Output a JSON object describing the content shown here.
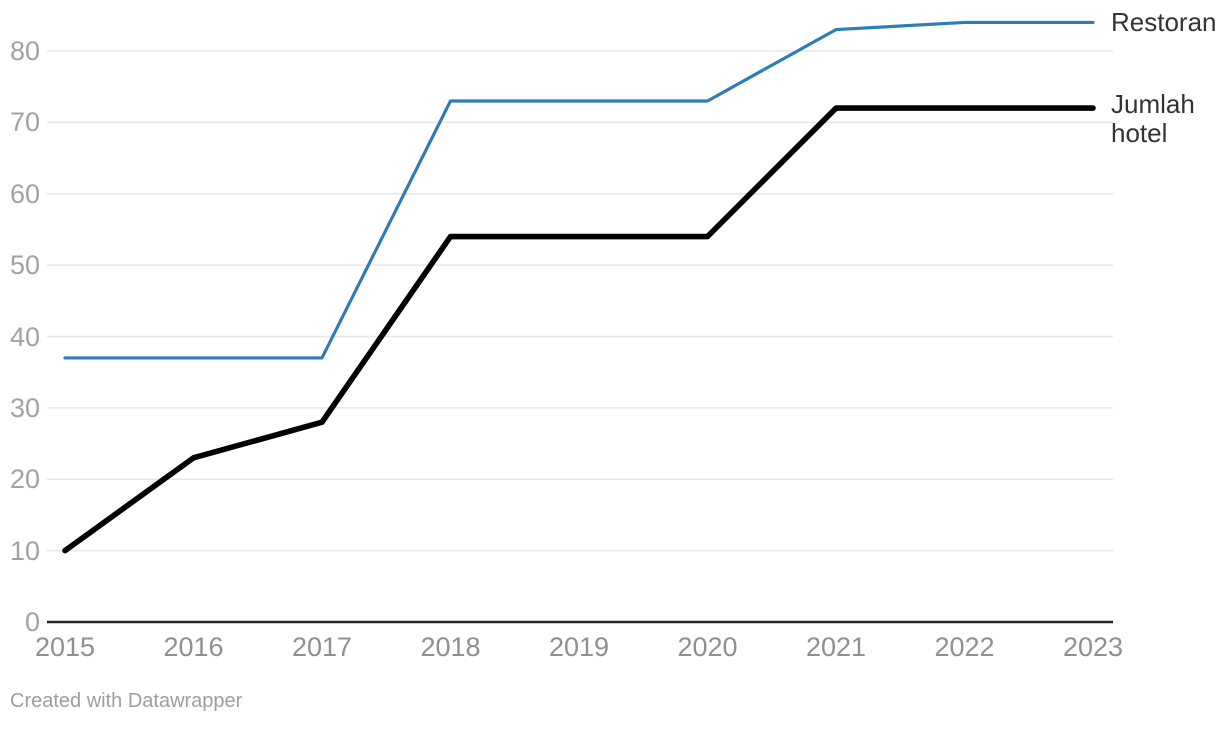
{
  "chart_data": {
    "type": "line",
    "x": [
      2015,
      2016,
      2017,
      2018,
      2019,
      2020,
      2021,
      2022,
      2023
    ],
    "series": [
      {
        "name": "Restoran",
        "values": [
          37,
          37,
          37,
          73,
          73,
          73,
          83,
          84,
          84
        ],
        "color": "#2e7db6"
      },
      {
        "name": "Jumlah hotel",
        "values": [
          10,
          23,
          28,
          54,
          54,
          54,
          72,
          72,
          72
        ],
        "color": "#000000"
      }
    ],
    "title": "",
    "xlabel": "",
    "ylabel": "",
    "ylim": [
      0,
      84
    ],
    "yticks": [
      0,
      10,
      20,
      30,
      40,
      50,
      60,
      70,
      80
    ],
    "grid": true,
    "legend_position": "direct-labels-right"
  },
  "colors": {
    "gridline": "#e6e6e6",
    "axis_line": "#262626",
    "y_tick_label": "#a2a2a2",
    "x_tick_label": "#8f8f8f",
    "series_label_text": "#333333",
    "footer_text": "#9e9e9e"
  },
  "footer": {
    "text": "Created with Datawrapper"
  }
}
